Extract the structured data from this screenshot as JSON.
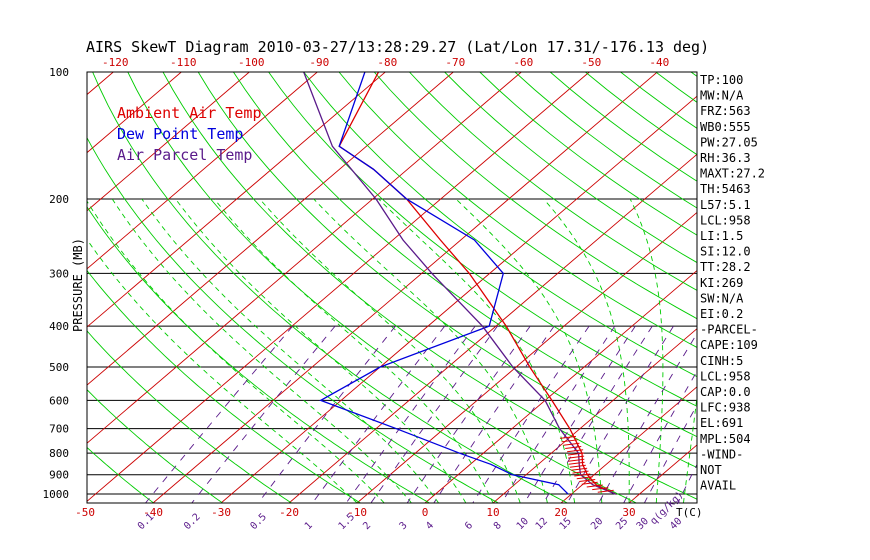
{
  "chart_data": {
    "type": "line",
    "title": "AIRS SkewT Diagram 2010-03-27/13:28:29.27 (Lat/Lon 17.31/-176.13 deg)",
    "ylabel": "PRESSURE (MB)",
    "xlabel": "T(C)",
    "mixing_ratio_unit": "q(g/kg)",
    "pressure_ticks": [
      100,
      200,
      300,
      400,
      500,
      600,
      700,
      800,
      900,
      1000
    ],
    "bottom_temp_ticks": [
      -50,
      -40,
      -30,
      -20,
      -10,
      0,
      10,
      20,
      30
    ],
    "top_temp_ticks": [
      -120,
      -110,
      -100,
      -90,
      -80,
      -70,
      -60,
      -50,
      -40
    ],
    "mixing_ratio_ticks": [
      "0.1",
      "0.2",
      "0.5",
      "1",
      "1.5",
      "2",
      "3",
      "4",
      "6",
      "8",
      "10",
      "12",
      "15",
      "20",
      "25",
      "30",
      "40"
    ],
    "legend": [
      {
        "label": "Ambient Air Temp",
        "color": "#dd0000"
      },
      {
        "label": "Dew Point Temp",
        "color": "#0000dd"
      },
      {
        "label": "Air Parcel Temp",
        "color": "#5a1a8a"
      }
    ],
    "series": [
      {
        "name": "Ambient Air Temp",
        "color": "#dd0000",
        "points": [
          [
            1000,
            26.5
          ],
          [
            950,
            22.0
          ],
          [
            900,
            19.0
          ],
          [
            850,
            16.5
          ],
          [
            800,
            14.5
          ],
          [
            700,
            8.5
          ],
          [
            600,
            1.0
          ],
          [
            500,
            -8.0
          ],
          [
            400,
            -18.5
          ],
          [
            300,
            -33.0
          ],
          [
            250,
            -43.0
          ],
          [
            200,
            -55.0
          ],
          [
            170,
            -65.0
          ],
          [
            150,
            -74.0
          ],
          [
            100,
            -81.0
          ]
        ]
      },
      {
        "name": "Dew Point Temp",
        "color": "#0000dd",
        "points": [
          [
            1000,
            19.5
          ],
          [
            950,
            16.5
          ],
          [
            900,
            8.0
          ],
          [
            850,
            3.0
          ],
          [
            800,
            -3.5
          ],
          [
            700,
            -17.0
          ],
          [
            600,
            -33.0
          ],
          [
            500,
            -30.0
          ],
          [
            400,
            -21.0
          ],
          [
            300,
            -28.0
          ],
          [
            250,
            -38.0
          ],
          [
            200,
            -55.0
          ],
          [
            170,
            -65.0
          ],
          [
            150,
            -74.0
          ],
          [
            100,
            -83.0
          ]
        ]
      },
      {
        "name": "Air Parcel Temp",
        "color": "#5a1a8a",
        "points": [
          [
            1000,
            26.5
          ],
          [
            950,
            21.5
          ],
          [
            900,
            18.0
          ],
          [
            850,
            16.0
          ],
          [
            800,
            14.0
          ],
          [
            700,
            7.0
          ],
          [
            600,
            0.0
          ],
          [
            500,
            -10.5
          ],
          [
            400,
            -22.0
          ],
          [
            300,
            -38.5
          ],
          [
            250,
            -48.5
          ],
          [
            200,
            -59.5
          ],
          [
            150,
            -75.0
          ],
          [
            100,
            -92.0
          ]
        ]
      }
    ]
  },
  "stats": [
    "TP:100",
    "MW:N/A",
    "FRZ:563",
    "WB0:555",
    "PW:27.05",
    "RH:36.3",
    "MAXT:27.2",
    "TH:5463",
    "L57:5.1",
    "LCL:958",
    "LI:1.5",
    "SI:12.0",
    "TT:28.2",
    "KI:269",
    "SW:N/A",
    "EI:0.2",
    "-PARCEL-",
    "CAPE:109",
    "CINH:5",
    "LCL:958",
    "CAP:0.0",
    "LFC:938",
    "EL:691",
    "MPL:504",
    "-WIND-",
    "NOT",
    "AVAIL"
  ],
  "colors": {
    "temp": "#dd0000",
    "dew": "#0000dd",
    "parcel": "#5a1a8a",
    "adiabat": "#00cc00",
    "isotherm": "#cc0000",
    "mixing": "#5a1a8a"
  }
}
